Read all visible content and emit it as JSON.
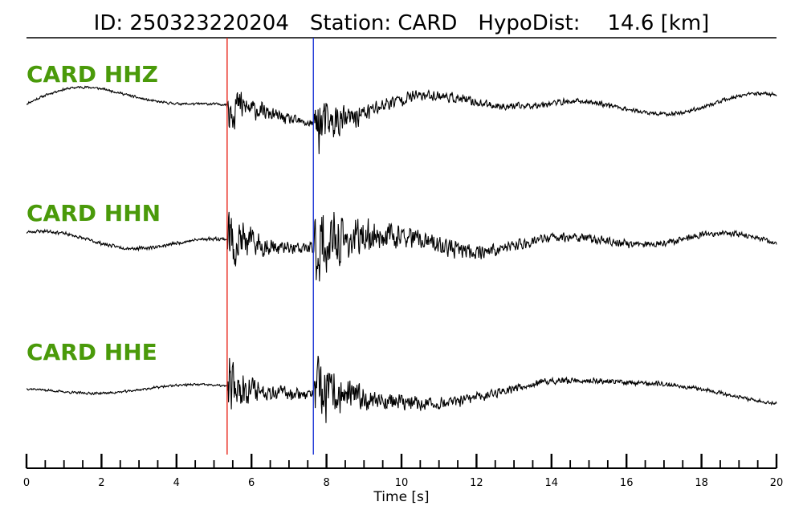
{
  "title": {
    "id_label": "ID:",
    "id_value": "250323220204",
    "station_label": "Station:",
    "station_value": "CARD",
    "hypodist_label": "HypoDist:",
    "hypodist_value": "14.6",
    "hypodist_unit": "[km]"
  },
  "colors": {
    "trace": "#000000",
    "label": "#4a9a0a",
    "p_pick": "#e8271b",
    "s_pick": "#1c35d6"
  },
  "chart_data": {
    "type": "line",
    "xlabel": "Time [s]",
    "xlim": [
      0,
      20
    ],
    "major_ticks": [
      0,
      2,
      4,
      6,
      8,
      10,
      12,
      14,
      16,
      18,
      20
    ],
    "minor_tick_step": 0.5,
    "picks": [
      {
        "phase": "P",
        "time": 5.35,
        "color": "#e8271b"
      },
      {
        "phase": "S",
        "time": 7.65,
        "color": "#1c35d6"
      }
    ],
    "series": [
      {
        "name": "CARD HHZ",
        "seed": 11,
        "pre_amp": 0.05,
        "p_amp": 1.0,
        "s_amp": 1.0,
        "coda": 0.25,
        "swell": [
          0.35,
          0.5,
          0.3
        ]
      },
      {
        "name": "CARD HHN",
        "seed": 23,
        "pre_amp": 0.05,
        "p_amp": 1.0,
        "s_amp": 1.0,
        "coda": 0.35,
        "swell": [
          0.25,
          0.15,
          0.1
        ]
      },
      {
        "name": "CARD HHE",
        "seed": 37,
        "pre_amp": 0.04,
        "p_amp": 0.9,
        "s_amp": 1.0,
        "coda": 0.25,
        "swell": [
          0.1,
          0.25,
          0.3
        ]
      }
    ]
  }
}
